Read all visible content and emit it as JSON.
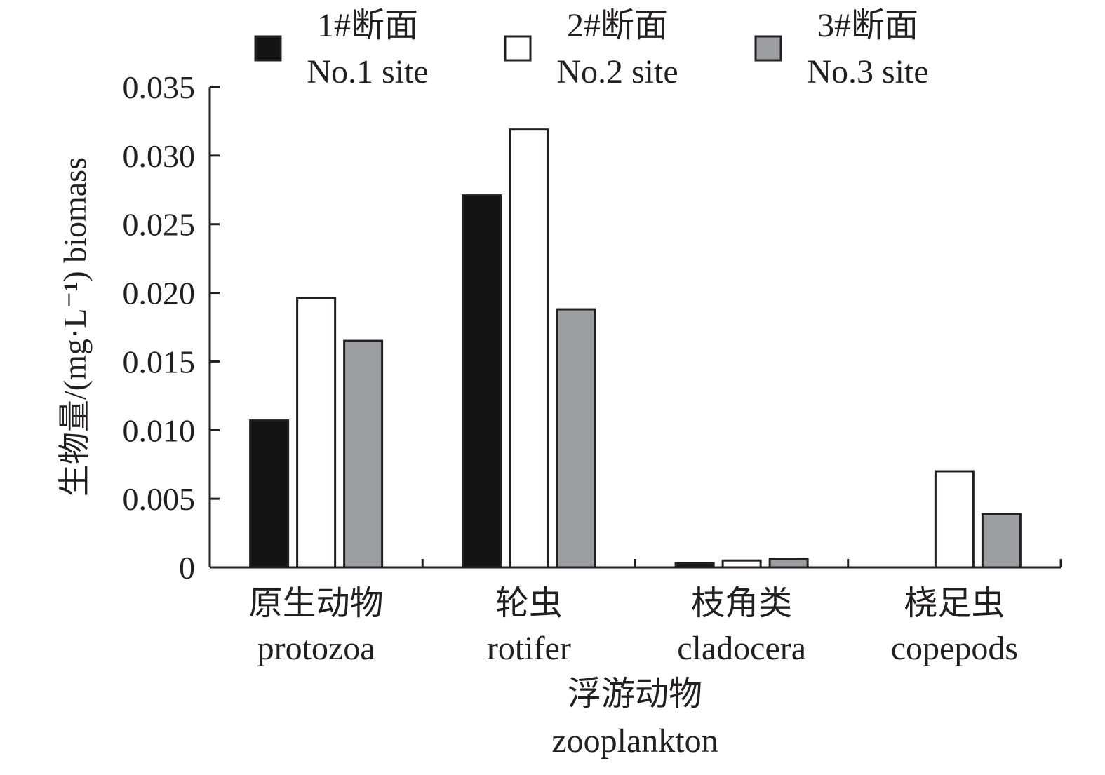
{
  "chart_data": {
    "type": "bar",
    "categories": [
      {
        "zh": "原生动物",
        "en": "protozoa"
      },
      {
        "zh": "轮虫",
        "en": "rotifer"
      },
      {
        "zh": "枝角类",
        "en": "cladocera"
      },
      {
        "zh": "桡足虫",
        "en": "copepods"
      }
    ],
    "series": [
      {
        "name_zh": "1#断面",
        "name_en": "No.1 site",
        "color": "#141414",
        "values": [
          0.0107,
          0.0271,
          0.0003,
          0
        ]
      },
      {
        "name_zh": "2#断面",
        "name_en": "No.2 site",
        "color": "#ffffff",
        "values": [
          0.0196,
          0.0319,
          0.0005,
          0.007
        ]
      },
      {
        "name_zh": "3#断面",
        "name_en": "No.3 site",
        "color": "#9d9ea1",
        "values": [
          0.0165,
          0.0188,
          0.0006,
          0.0039
        ]
      }
    ],
    "yticks": [
      "0",
      "0.005",
      "0.010",
      "0.015",
      "0.020",
      "0.025",
      "0.030",
      "0.035"
    ],
    "ylim": [
      0,
      0.035
    ],
    "ylabel": "生物量/(mg·L⁻¹) biomass",
    "xlabel_zh": "浮游动物",
    "xlabel_en": "zooplankton",
    "legend_position": "top",
    "grid": false
  }
}
